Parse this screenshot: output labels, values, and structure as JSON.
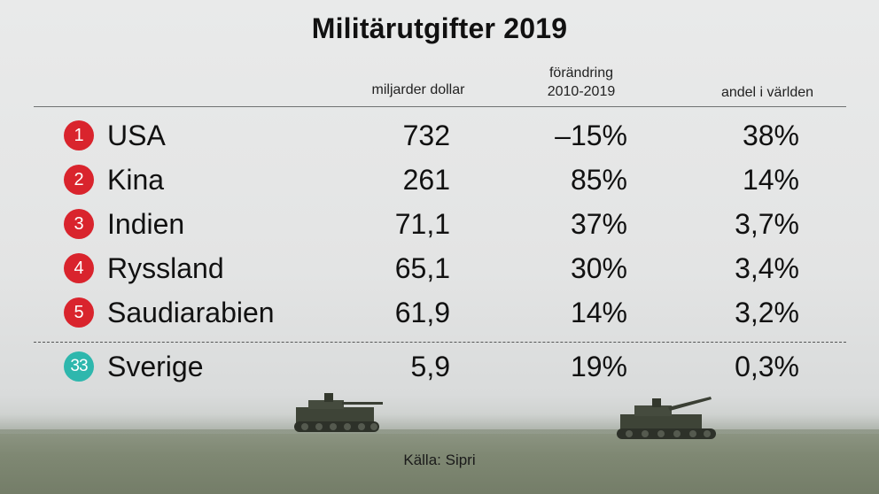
{
  "chart_data": {
    "type": "table",
    "title": "Militärutgifter 2019",
    "columns": [
      "miljarder dollar",
      "förändring 2010-2019",
      "andel i världen"
    ],
    "rows": [
      {
        "rank": "1",
        "country": "USA",
        "spend": "732",
        "change": "–15%",
        "share": "38%"
      },
      {
        "rank": "2",
        "country": "Kina",
        "spend": "261",
        "change": "85%",
        "share": "14%"
      },
      {
        "rank": "3",
        "country": "Indien",
        "spend": "71,1",
        "change": "37%",
        "share": "3,7%"
      },
      {
        "rank": "4",
        "country": "Ryssland",
        "spend": "65,1",
        "change": "30%",
        "share": "3,4%"
      },
      {
        "rank": "5",
        "country": "Saudiarabien",
        "spend": "61,9",
        "change": "14%",
        "share": "3,2%"
      },
      {
        "rank": "33",
        "country": "Sverige",
        "spend": "5,9",
        "change": "19%",
        "share": "0,3%"
      }
    ],
    "source": "Källa: Sipri"
  },
  "headers": {
    "spend": "miljarder dollar",
    "change_line1": "förändring",
    "change_line2": "2010-2019",
    "share": "andel i världen"
  },
  "colors": {
    "badge_top5": "#d9242d",
    "badge_sweden": "#2eb7ad"
  }
}
